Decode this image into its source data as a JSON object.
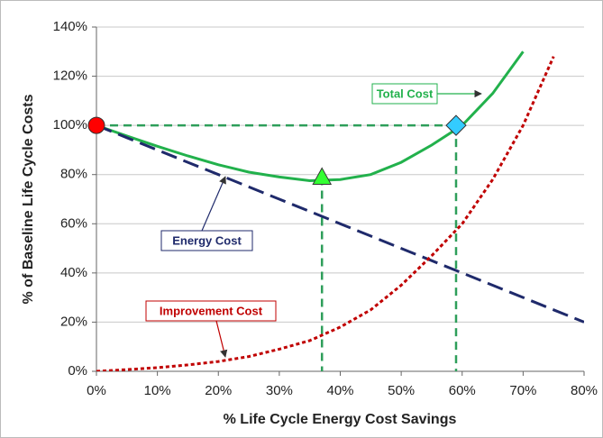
{
  "chart_data": {
    "type": "line",
    "xlabel": "% Life Cycle Energy Cost Savings",
    "ylabel": "% of Baseline Life Cycle Costs",
    "x": [
      0,
      5,
      10,
      15,
      20,
      25,
      30,
      35,
      40,
      45,
      50,
      55,
      60,
      65,
      70,
      75,
      80
    ],
    "series": [
      {
        "name": "Total Cost",
        "color": "#22b14c",
        "dash": "none",
        "values": [
          100,
          95.7,
          91.5,
          87.6,
          84,
          81,
          79,
          77.5,
          78,
          80,
          85,
          92,
          100,
          113,
          130,
          null,
          null
        ]
      },
      {
        "name": "Energy Cost",
        "color": "#1f2a6b",
        "dash": "18 8",
        "values": [
          100,
          95,
          90,
          85,
          80,
          75,
          70,
          65,
          60,
          55,
          50,
          45,
          40,
          35,
          30,
          25,
          20
        ]
      },
      {
        "name": "Improvement Cost",
        "color": "#c00000",
        "dash": "4 3",
        "values": [
          0,
          0.7,
          1.5,
          2.6,
          4,
          6,
          9,
          12.5,
          18,
          25,
          35,
          47,
          60,
          78,
          100,
          128,
          null
        ]
      }
    ],
    "markers": [
      {
        "shape": "circle",
        "color": "#ff0000",
        "x": 0,
        "y": 100
      },
      {
        "shape": "triangle",
        "color": "#33ff33",
        "x": 37,
        "y": 79
      },
      {
        "shape": "diamond",
        "color": "#33ccff",
        "x": 59,
        "y": 100
      }
    ],
    "xlim": [
      0,
      80
    ],
    "xticks": [
      {
        "value": 0,
        "label": "0%"
      },
      {
        "value": 10,
        "label": "10%"
      },
      {
        "value": 20,
        "label": "20%"
      },
      {
        "value": 30,
        "label": "30%"
      },
      {
        "value": 40,
        "label": "40%"
      },
      {
        "value": 50,
        "label": "50%"
      },
      {
        "value": 60,
        "label": "60%"
      },
      {
        "value": 70,
        "label": "70%"
      },
      {
        "value": 80,
        "label": "80%"
      }
    ],
    "ylim": [
      0,
      140
    ],
    "yticks": [
      {
        "value": 0,
        "label": "0%"
      },
      {
        "value": 20,
        "label": "20%"
      },
      {
        "value": 40,
        "label": "40%"
      },
      {
        "value": 60,
        "label": "60%"
      },
      {
        "value": 80,
        "label": "80%"
      },
      {
        "value": 100,
        "label": "100%"
      },
      {
        "value": 120,
        "label": "120%"
      },
      {
        "value": 140,
        "label": "140%"
      }
    ],
    "grid": true
  }
}
